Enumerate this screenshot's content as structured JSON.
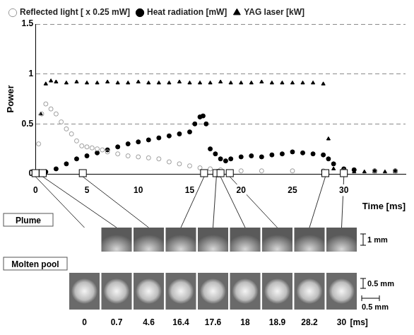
{
  "chart_data": {
    "type": "scatter",
    "y_label": "Power",
    "x_label": "Time [ms]",
    "xlim": [
      0,
      36
    ],
    "xticks": [
      0,
      5,
      10,
      15,
      20,
      25,
      30
    ],
    "ylim": [
      0,
      1.5
    ],
    "yticks": [
      0,
      0.5,
      1,
      1.5
    ],
    "grid": true,
    "legend": "top",
    "series": [
      {
        "name": "Reflected light [ x 0.25 mW]",
        "color": "#999999",
        "marker": "circle_open",
        "x": [
          0,
          0.3,
          0.6,
          1,
          1.5,
          2,
          2.5,
          3,
          3.5,
          4,
          4.5,
          5,
          5.5,
          6,
          6.5,
          7,
          8,
          9,
          10,
          11,
          12,
          13,
          14,
          15,
          16,
          17,
          18,
          20,
          22,
          25,
          28,
          30,
          33,
          35
        ],
        "values": [
          0,
          0.3,
          0.6,
          0.7,
          0.65,
          0.6,
          0.52,
          0.45,
          0.4,
          0.33,
          0.28,
          0.27,
          0.26,
          0.25,
          0.24,
          0.22,
          0.2,
          0.18,
          0.17,
          0.16,
          0.15,
          0.12,
          0.1,
          0.08,
          0.06,
          0.05,
          0.04,
          0.03,
          0.03,
          0.03,
          0.03,
          0.03,
          0.03,
          0.03
        ]
      },
      {
        "name": "Heat radiation [mW]",
        "color": "#000000",
        "marker": "circle",
        "x": [
          0,
          1,
          2,
          3,
          4,
          5,
          6,
          7,
          8,
          9,
          10,
          11,
          12,
          13,
          14,
          15,
          15.5,
          16,
          16.3,
          16.6,
          17,
          17.5,
          18,
          18.5,
          19,
          20,
          21,
          22,
          23,
          24,
          25,
          26,
          27,
          28,
          28.5,
          29,
          30,
          31,
          33,
          35
        ],
        "values": [
          0,
          0.02,
          0.05,
          0.1,
          0.15,
          0.18,
          0.21,
          0.24,
          0.27,
          0.3,
          0.32,
          0.34,
          0.36,
          0.38,
          0.4,
          0.42,
          0.5,
          0.57,
          0.58,
          0.5,
          0.25,
          0.2,
          0.15,
          0.13,
          0.15,
          0.17,
          0.18,
          0.17,
          0.19,
          0.2,
          0.22,
          0.21,
          0.2,
          0.19,
          0.15,
          0.1,
          0.05,
          0.04,
          0.03,
          0.03
        ]
      },
      {
        "name": "YAG laser [kW]",
        "color": "#000000",
        "marker": "triangle",
        "x": [
          0,
          0.5,
          1,
          1.5,
          2,
          3,
          4,
          5,
          6,
          7,
          8,
          9,
          10,
          11,
          12,
          13,
          14,
          15,
          16,
          17,
          18,
          19,
          20,
          21,
          22,
          23,
          24,
          25,
          26,
          27,
          28,
          28.5,
          29,
          30,
          31,
          32,
          33,
          34,
          35
        ],
        "values": [
          0,
          0.6,
          0.9,
          0.93,
          0.92,
          0.91,
          0.92,
          0.91,
          0.91,
          0.92,
          0.91,
          0.91,
          0.92,
          0.91,
          0.91,
          0.91,
          0.92,
          0.91,
          0.91,
          0.91,
          0.92,
          0.91,
          0.91,
          0.91,
          0.92,
          0.91,
          0.91,
          0.91,
          0.91,
          0.91,
          0.9,
          0.35,
          0.05,
          0.02,
          0.02,
          0.02,
          0.02,
          0.02,
          0.02
        ]
      }
    ]
  },
  "photos": {
    "times": [
      0,
      0.7,
      4.6,
      16.4,
      17.6,
      18,
      18.9,
      28.2,
      30
    ],
    "time_unit": "[ms]",
    "rows": [
      {
        "label": "Plume",
        "times": [
          0.7,
          4.6,
          16.4,
          17.6,
          18,
          18.9,
          28.2,
          30
        ],
        "scale_bars": [
          "1 mm"
        ]
      },
      {
        "label": "Molten pool",
        "times": [
          0,
          0.7,
          4.6,
          16.4,
          17.6,
          18,
          18.9,
          28.2,
          30
        ],
        "scale_bars": [
          "0.5 mm",
          "0.5 mm"
        ]
      }
    ]
  }
}
